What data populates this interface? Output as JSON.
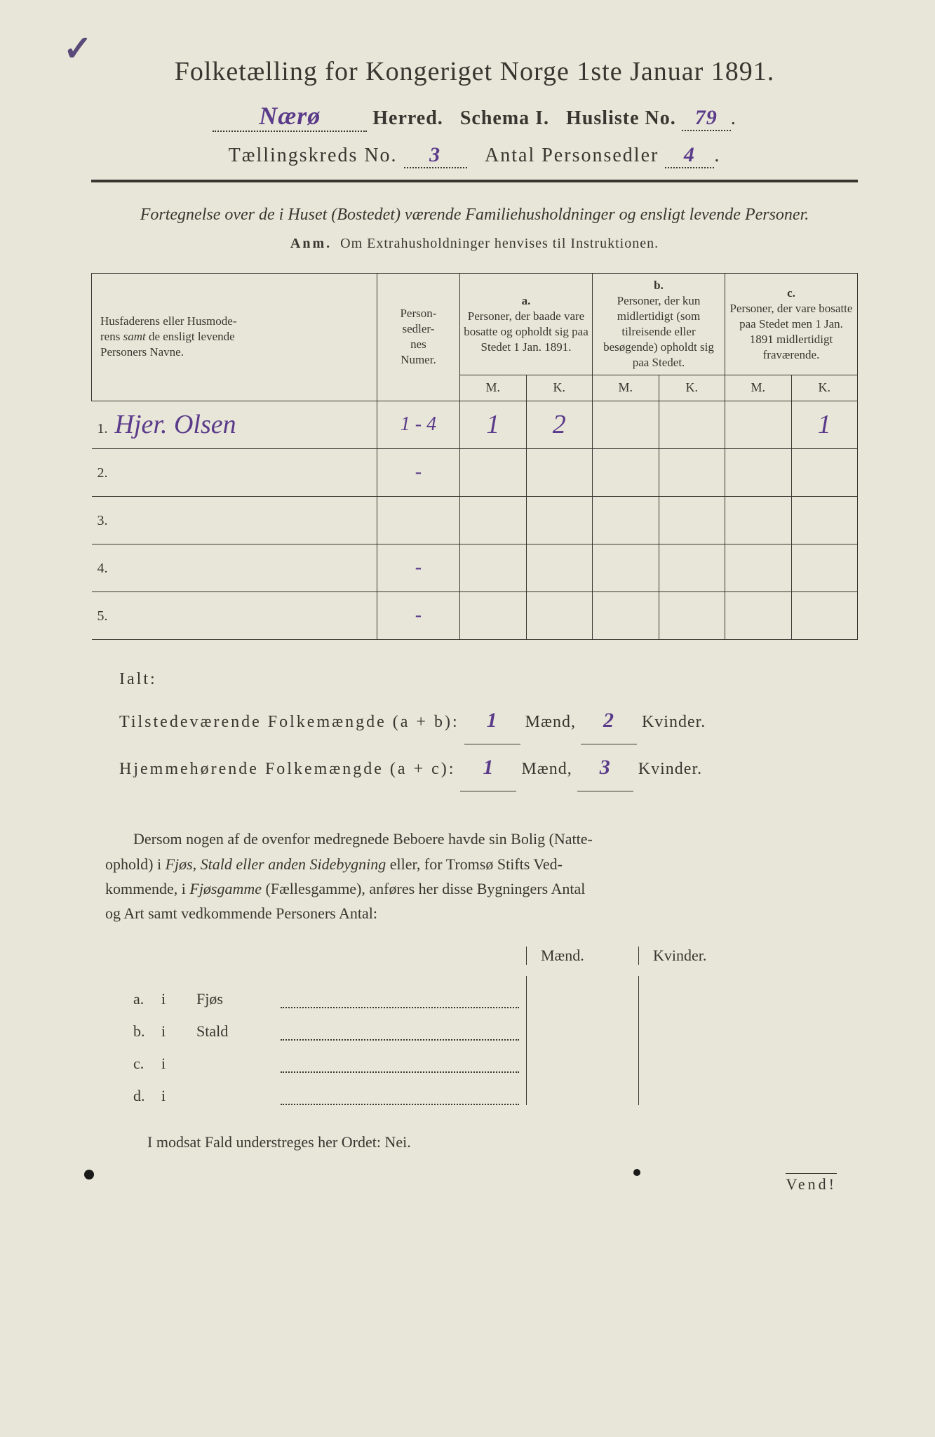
{
  "checkmark": "✓",
  "title": "Folketælling for Kongeriget Norge 1ste Januar 1891.",
  "header": {
    "herred_value": "Nærø",
    "herred_label": "Herred.",
    "schema_label": "Schema I.",
    "husliste_label": "Husliste No.",
    "husliste_value": "79",
    "kreds_label": "Tællingskreds No.",
    "kreds_value": "3",
    "antal_label": "Antal Personsedler",
    "antal_value": "4"
  },
  "subtitle": "Fortegnelse over de i Huset (Bostedet) værende Familiehusholdninger og ensligt levende Personer.",
  "anm_label": "Anm.",
  "anm_text": "Om Extrahusholdninger henvises til Instruktionen.",
  "table": {
    "col1": "Husfaderens eller Husmoderens samt de ensligt levende Personers Navne.",
    "col2": "Personsedlernes Numer.",
    "col_a_label": "a.",
    "col_a": "Personer, der baade vare bosatte og opholdt sig paa Stedet 1 Jan. 1891.",
    "col_b_label": "b.",
    "col_b": "Personer, der kun midlertidigt (som tilreisende eller besøgende) opholdt sig paa Stedet.",
    "col_c_label": "c.",
    "col_c": "Personer, der vare bosatte paa Stedet men 1 Jan. 1891 midlertidigt fraværende.",
    "M": "M.",
    "K": "K.",
    "rows": [
      {
        "n": "1.",
        "name": "Hjer. Olsen",
        "num": "1 - 4",
        "aM": "1",
        "aK": "2",
        "bM": "",
        "bK": "",
        "cM": "",
        "cK": "1"
      },
      {
        "n": "2.",
        "name": "",
        "num": "-",
        "aM": "",
        "aK": "",
        "bM": "",
        "bK": "",
        "cM": "",
        "cK": ""
      },
      {
        "n": "3.",
        "name": "",
        "num": "",
        "aM": "",
        "aK": "",
        "bM": "",
        "bK": "",
        "cM": "",
        "cK": ""
      },
      {
        "n": "4.",
        "name": "",
        "num": "-",
        "aM": "",
        "aK": "",
        "bM": "",
        "bK": "",
        "cM": "",
        "cK": ""
      },
      {
        "n": "5.",
        "name": "",
        "num": "-",
        "aM": "",
        "aK": "",
        "bM": "",
        "bK": "",
        "cM": "",
        "cK": ""
      }
    ]
  },
  "totals": {
    "ialt": "Ialt:",
    "line1_label": "Tilstedeværende Folkemængde (a + b):",
    "line1_m": "1",
    "line1_k": "2",
    "line2_label": "Hjemmehørende Folkemængde (a + c):",
    "line2_m": "1",
    "line2_k": "3",
    "maend": "Mænd,",
    "kvinder": "Kvinder."
  },
  "para": "Dersom nogen af de ovenfor medregnede Beboere havde sin Bolig (Natteophold) i Fjøs, Stald eller anden Sidebygning eller, for Tromsø Stifts Vedkommende, i Fjøsgamme (Fællesgamme), anføres her disse Bygningers Antal og Art samt vedkommende Personers Antal:",
  "mk": {
    "m": "Mænd.",
    "k": "Kvinder."
  },
  "bldg": [
    {
      "lab": "a.",
      "i": "i",
      "typ": "Fjøs"
    },
    {
      "lab": "b.",
      "i": "i",
      "typ": "Stald"
    },
    {
      "lab": "c.",
      "i": "i",
      "typ": ""
    },
    {
      "lab": "d.",
      "i": "i",
      "typ": ""
    }
  ],
  "footer": "I modsat Fald understreges her Ordet: Nei.",
  "vend": "Vend!",
  "colors": {
    "paper": "#e8e6d8",
    "ink": "#3a3530",
    "handwriting": "#5a3a8a"
  }
}
